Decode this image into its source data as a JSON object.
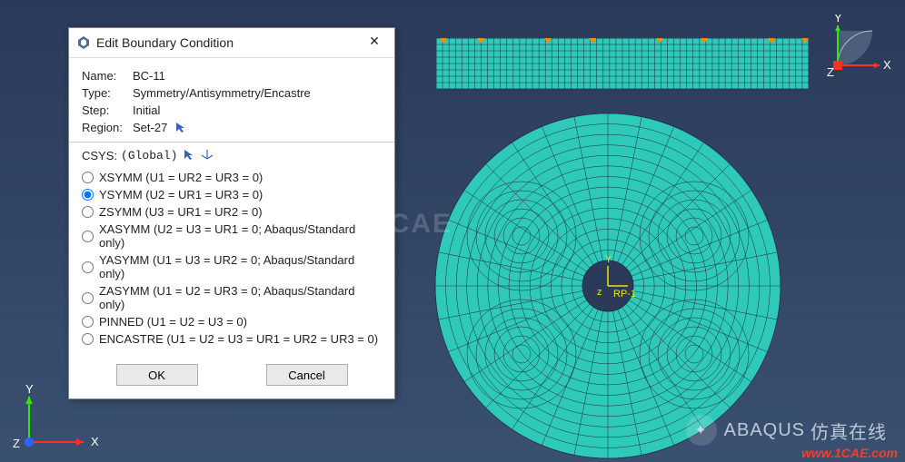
{
  "dialog": {
    "title": "Edit Boundary Condition",
    "fields": {
      "name_label": "Name:",
      "name_value": "BC-11",
      "type_label": "Type:",
      "type_value": "Symmetry/Antisymmetry/Encastre",
      "step_label": "Step:",
      "step_value": "Initial",
      "region_label": "Region:",
      "region_value": "Set-27"
    },
    "csys": {
      "label": "CSYS:",
      "value": "(Global)"
    },
    "options": [
      {
        "label": "XSYMM (U1 = UR2 = UR3 = 0)",
        "selected": false
      },
      {
        "label": "YSYMM (U2 = UR1 = UR3 = 0)",
        "selected": true
      },
      {
        "label": "ZSYMM (U3 = UR1 = UR2 = 0)",
        "selected": false
      },
      {
        "label": "XASYMM (U2 = U3 = UR1 = 0; Abaqus/Standard only)",
        "selected": false
      },
      {
        "label": "YASYMM (U1 = U3 = UR2 = 0; Abaqus/Standard only)",
        "selected": false
      },
      {
        "label": "ZASYMM (U1 = U2 = UR3 = 0; Abaqus/Standard only)",
        "selected": false
      },
      {
        "label": "PINNED (U1 = U2 = U3 = 0)",
        "selected": false
      },
      {
        "label": "ENCASTRE (U1 = U2 = U3 = UR1 = UR2 = UR3 = 0)",
        "selected": false
      }
    ],
    "buttons": {
      "ok": "OK",
      "cancel": "Cancel"
    }
  },
  "viewport": {
    "rect_mesh": {
      "cols": 58,
      "rows": 8,
      "color": "#2fc9b9",
      "line_color": "#1a2a3a",
      "bc_color": "#ff8c00",
      "bc_positions": [
        0.02,
        0.12,
        0.3,
        0.42,
        0.6,
        0.72,
        0.9,
        0.99
      ]
    },
    "circle_mesh": {
      "outer_radius": 190,
      "inner_radius": 28,
      "spokes": 32,
      "rings": 14,
      "color": "#2fc9b9",
      "line_color": "#1a2a3a",
      "rp_label": "RP-1",
      "origin_label_y": "Y",
      "origin_label_z": "z"
    },
    "main_triad": {
      "x": "X",
      "y": "Y",
      "z": "Z"
    },
    "view_triad": {
      "x": "X",
      "y": "Y",
      "z": "Z"
    }
  },
  "watermarks": {
    "center": "1CAE",
    "abaqus": "ABAQUS",
    "extra": "仿真在线",
    "url": "www.1CAE.com"
  },
  "colors": {
    "x_axis": "#ff3020",
    "y_axis": "#30e800",
    "z_axis": "#3060ff",
    "bg_top": "#2b3a5a",
    "bg_bot": "#3a5070"
  }
}
